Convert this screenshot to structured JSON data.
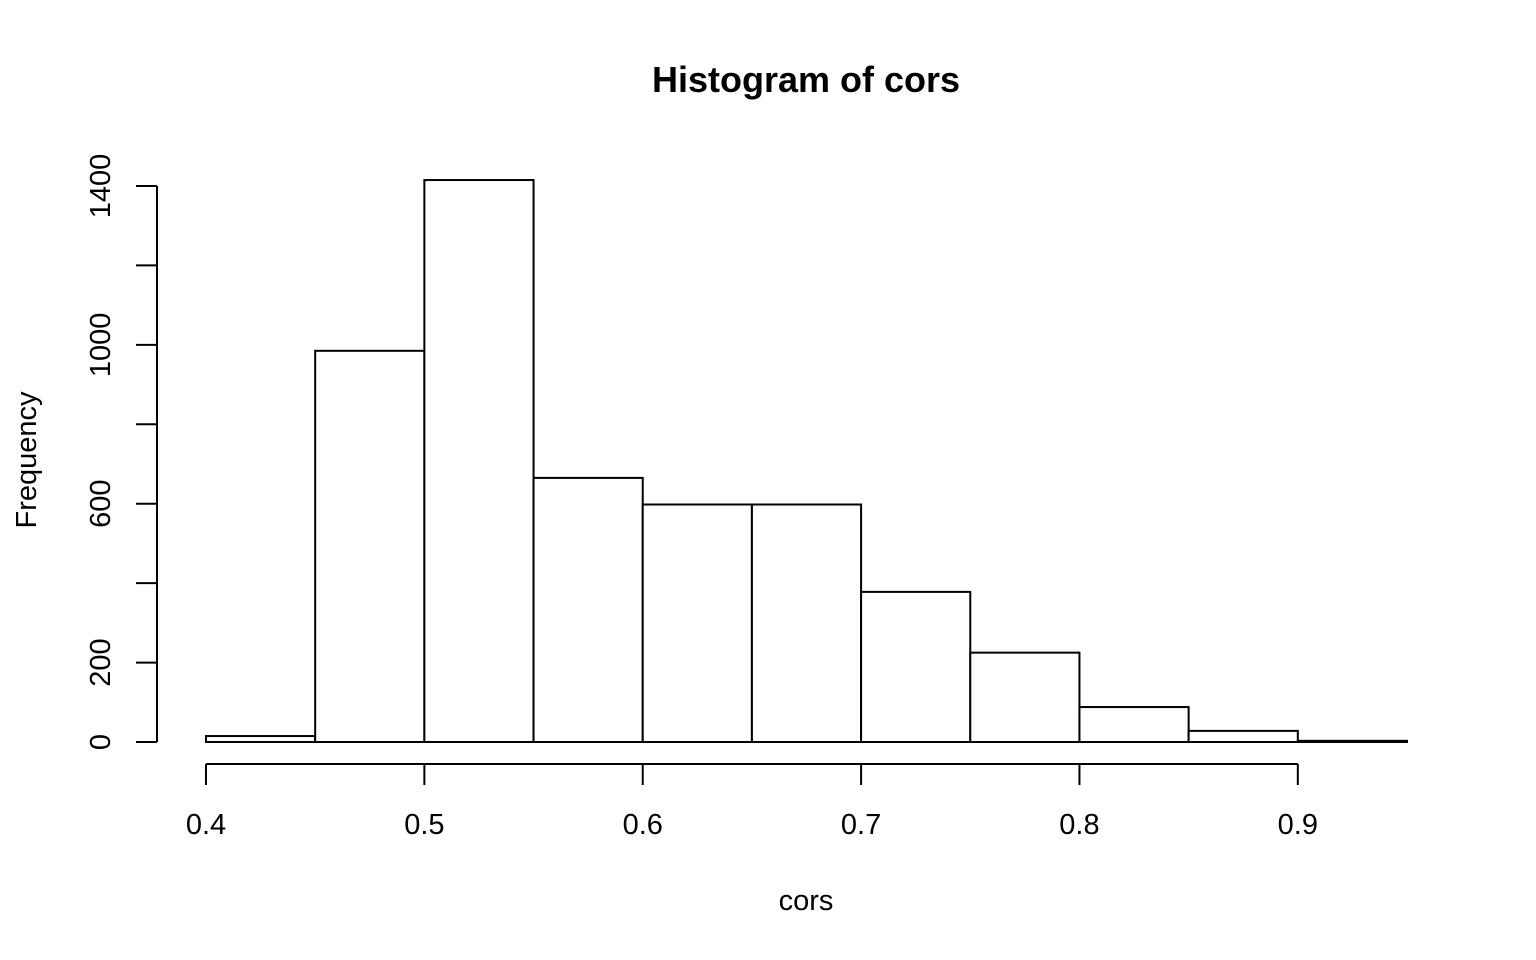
{
  "chart_data": {
    "type": "bar",
    "title": "Histogram of cors",
    "xlabel": "cors",
    "ylabel": "Frequency",
    "bin_edges": [
      0.4,
      0.45,
      0.5,
      0.55,
      0.6,
      0.65,
      0.7,
      0.75,
      0.8,
      0.85,
      0.9,
      0.95
    ],
    "values": [
      15,
      985,
      1415,
      665,
      598,
      598,
      378,
      225,
      88,
      28,
      3
    ],
    "xlim": [
      0.4,
      0.95
    ],
    "ylim": [
      0,
      1400
    ],
    "x_ticks": [
      "0.4",
      "0.5",
      "0.6",
      "0.7",
      "0.8",
      "0.9"
    ],
    "y_ticks": [
      "0",
      "200",
      "600",
      "1000",
      "1400"
    ],
    "y_minor_ticks": [
      400,
      800,
      1200
    ],
    "grid": false,
    "legend": "none"
  }
}
